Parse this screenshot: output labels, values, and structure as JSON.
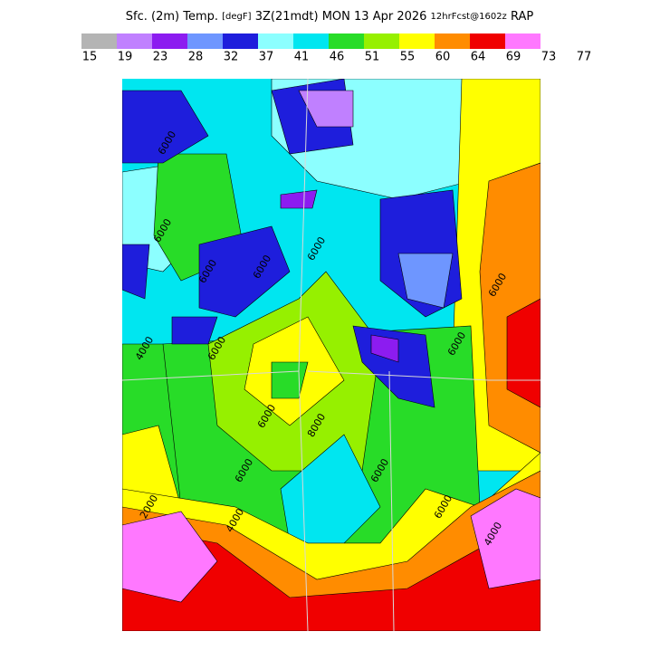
{
  "header": {
    "title_parts": [
      "Sfc. (2m) Temp.",
      "[degF]",
      "3Z(21mdt) MON 13 Apr 2026",
      "12hrFcst@1602z",
      "RAP"
    ]
  },
  "legend": {
    "colors": [
      "#b4b4b4",
      "#c080ff",
      "#8c1cf0",
      "#6e96ff",
      "#1e1edc",
      "#8cffff",
      "#00e6f0",
      "#28dc28",
      "#96f000",
      "#ffff00",
      "#ff8c00",
      "#f00000",
      "#ff78ff"
    ],
    "labels": [
      15,
      19,
      23,
      28,
      32,
      37,
      41,
      46,
      51,
      55,
      60,
      64,
      69,
      73,
      77
    ]
  },
  "map": {
    "contour_labels": [
      "6000",
      "6000",
      "6000",
      "4000",
      "6000",
      "6000",
      "6000",
      "6000",
      "2000",
      "4000",
      "6000",
      "6000",
      "6000",
      "8000",
      "4000",
      "6000",
      "6000"
    ]
  }
}
